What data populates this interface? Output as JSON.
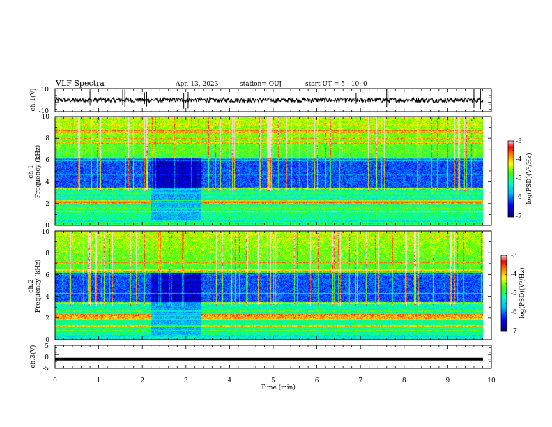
{
  "header": {
    "title": "VLF Spectra",
    "date": "Apr. 13, 2023",
    "station": "station= OUJ",
    "start": "start  UT =   5 : 10: 0"
  },
  "chart_data": [
    {
      "type": "line",
      "name": "ch1-waveform",
      "ylabel": "ch.1(V)",
      "ylim": [
        -10,
        10
      ],
      "yticks": [
        "10",
        "-10"
      ],
      "xlim": [
        0,
        10
      ],
      "baseline": 0,
      "noise_band": [
        -2,
        2
      ],
      "spikes_min": [
        0.8,
        1.55,
        1.6,
        2.05,
        2.1,
        2.95,
        3.05,
        6.9,
        7.6,
        7.63,
        9.6,
        9.75
      ]
    },
    {
      "type": "heatmap",
      "name": "ch1-spectrogram",
      "ylabel": "ch.1\nFrequency (kHz)",
      "ylabel_lines": [
        "ch.1",
        "Frequency (kHz)"
      ],
      "ylim": [
        0,
        10
      ],
      "yticks": [
        "0",
        "2",
        "4",
        "6",
        "8",
        "10"
      ],
      "xlim": [
        0,
        9.8
      ],
      "colorbar": {
        "label": "log(PSD)(V²/Hz)",
        "range": [
          -7,
          -3
        ],
        "ticks": [
          "-3",
          "-4",
          "-5",
          "-6",
          "-7"
        ]
      },
      "quiet_interval_min": [
        2.2,
        3.35
      ]
    },
    {
      "type": "heatmap",
      "name": "ch2-spectrogram",
      "ylabel": "ch.2\nFrequency (kHz)",
      "ylabel_lines": [
        "ch.2",
        "Frequency (kHz)"
      ],
      "ylim": [
        0,
        10
      ],
      "yticks": [
        "0",
        "2",
        "4",
        "6",
        "8",
        "10"
      ],
      "xlim": [
        0,
        9.8
      ],
      "colorbar": {
        "label": "log(PSD)(V²/Hz)",
        "range": [
          -7,
          -3
        ],
        "ticks": [
          "-3",
          "-4",
          "-5",
          "-6",
          "-7"
        ]
      },
      "quiet_interval_min": [
        2.2,
        3.35
      ]
    },
    {
      "type": "line",
      "name": "ch3-waveform",
      "ylabel": "ch.3(V)",
      "ylim": [
        -5,
        5
      ],
      "yticks": [
        "5",
        "0",
        "-5"
      ],
      "xlim": [
        0,
        10
      ],
      "value": -1
    }
  ],
  "xaxis": {
    "label": "Time (min)",
    "ticks": [
      "0",
      "1",
      "2",
      "3",
      "4",
      "5",
      "6",
      "7",
      "8",
      "9",
      "10"
    ]
  },
  "colors": {
    "axis": "#000000",
    "colormap": [
      "#00008b",
      "#0000ff",
      "#00bfff",
      "#00ffff",
      "#00ff7f",
      "#7fff00",
      "#ffff00",
      "#ff7f00",
      "#ff0000",
      "#ffffff"
    ]
  }
}
